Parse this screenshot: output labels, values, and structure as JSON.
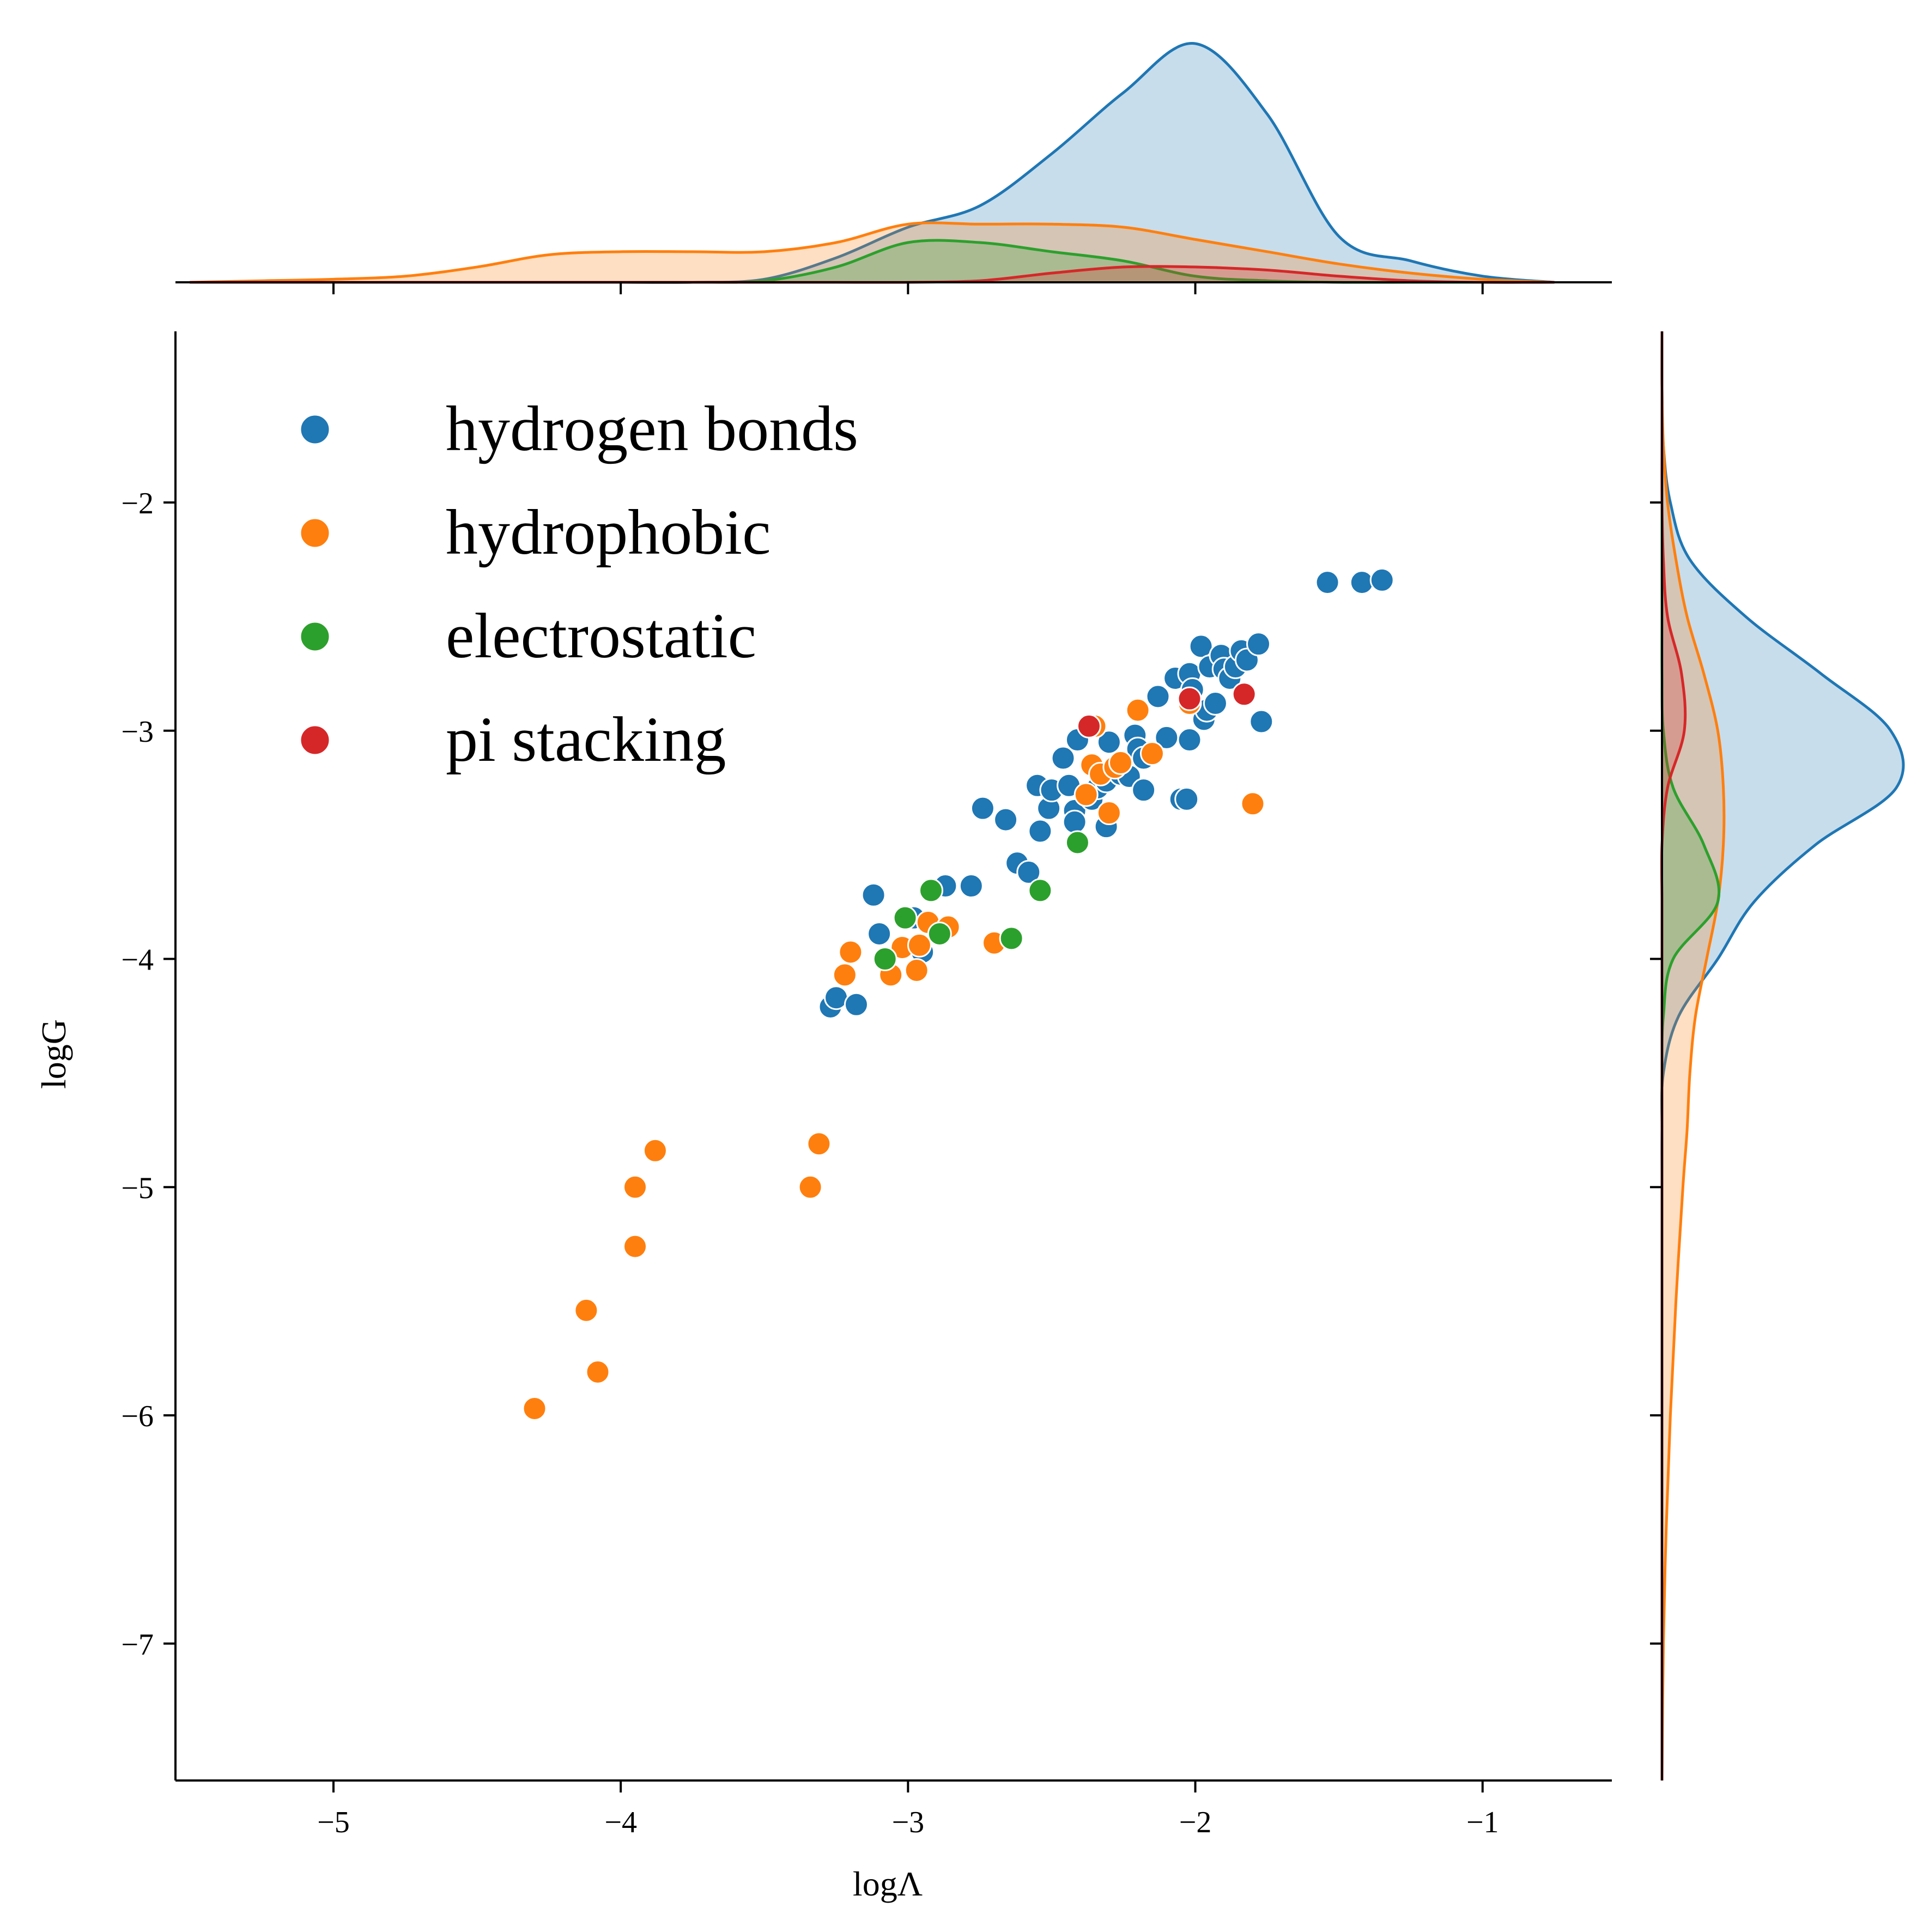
{
  "chart_data": {
    "type": "scatter",
    "variant": "joint scatter with marginal KDE density curves (top and right)",
    "xlabel": "logΛ",
    "ylabel": "logG",
    "xlim": [
      -5.55,
      -0.55
    ],
    "ylim": [
      -7.6,
      -1.25
    ],
    "xticks": [
      -5,
      -4,
      -3,
      -2,
      -1
    ],
    "yticks": [
      -7,
      -6,
      -5,
      -4,
      -3,
      -2
    ],
    "xtick_labels": [
      "−5",
      "−4",
      "−3",
      "−2",
      "−1"
    ],
    "ytick_labels": [
      "−7",
      "−6",
      "−5",
      "−4",
      "−3",
      "−2"
    ],
    "grid": false,
    "legend_placement": "top-left",
    "series": [
      {
        "name": "hydrogen bonds",
        "color": "#1f77b4",
        "points": [
          [
            -3.27,
            -4.21
          ],
          [
            -3.25,
            -4.17
          ],
          [
            -3.18,
            -4.2
          ],
          [
            -3.12,
            -3.72
          ],
          [
            -3.1,
            -3.89
          ],
          [
            -2.98,
            -3.82
          ],
          [
            -2.95,
            -3.97
          ],
          [
            -2.87,
            -3.68
          ],
          [
            -2.78,
            -3.68
          ],
          [
            -2.74,
            -3.34
          ],
          [
            -2.66,
            -3.39
          ],
          [
            -2.62,
            -3.58
          ],
          [
            -2.58,
            -3.62
          ],
          [
            -2.55,
            -3.24
          ],
          [
            -2.54,
            -3.44
          ],
          [
            -2.51,
            -3.34
          ],
          [
            -2.5,
            -3.26
          ],
          [
            -2.46,
            -3.12
          ],
          [
            -2.44,
            -3.24
          ],
          [
            -2.42,
            -3.35
          ],
          [
            -2.42,
            -3.4
          ],
          [
            -2.41,
            -3.04
          ],
          [
            -2.36,
            -3.3
          ],
          [
            -2.34,
            -3.25
          ],
          [
            -2.31,
            -3.22
          ],
          [
            -2.31,
            -3.42
          ],
          [
            -2.3,
            -3.05
          ],
          [
            -2.26,
            -3.19
          ],
          [
            -2.23,
            -3.2
          ],
          [
            -2.21,
            -3.02
          ],
          [
            -2.2,
            -3.08
          ],
          [
            -2.18,
            -3.12
          ],
          [
            -2.18,
            -3.26
          ],
          [
            -2.13,
            -2.85
          ],
          [
            -2.1,
            -3.03
          ],
          [
            -2.07,
            -2.77
          ],
          [
            -2.05,
            -3.3
          ],
          [
            -2.03,
            -3.3
          ],
          [
            -2.02,
            -3.04
          ],
          [
            -2.02,
            -2.75
          ],
          [
            -2.01,
            -2.82
          ],
          [
            -1.98,
            -2.63
          ],
          [
            -1.97,
            -2.95
          ],
          [
            -1.96,
            -2.91
          ],
          [
            -1.95,
            -2.72
          ],
          [
            -1.93,
            -2.88
          ],
          [
            -1.91,
            -2.67
          ],
          [
            -1.9,
            -2.73
          ],
          [
            -1.88,
            -2.77
          ],
          [
            -1.86,
            -2.72
          ],
          [
            -1.84,
            -2.65
          ],
          [
            -1.82,
            -2.69
          ],
          [
            -1.78,
            -2.62
          ],
          [
            -1.77,
            -2.96
          ],
          [
            -1.54,
            -2.35
          ],
          [
            -1.42,
            -2.35
          ],
          [
            -1.35,
            -2.34
          ]
        ]
      },
      {
        "name": "hydrophobic",
        "color": "#ff7f0e",
        "points": [
          [
            -4.3,
            -5.97
          ],
          [
            -4.12,
            -5.54
          ],
          [
            -4.08,
            -5.81
          ],
          [
            -3.95,
            -5.26
          ],
          [
            -3.95,
            -5.0
          ],
          [
            -3.88,
            -4.84
          ],
          [
            -3.34,
            -5.0
          ],
          [
            -3.31,
            -4.81
          ],
          [
            -3.22,
            -4.07
          ],
          [
            -3.2,
            -3.97
          ],
          [
            -3.06,
            -4.07
          ],
          [
            -3.02,
            -3.95
          ],
          [
            -2.97,
            -4.05
          ],
          [
            -2.96,
            -3.94
          ],
          [
            -2.93,
            -3.84
          ],
          [
            -2.86,
            -3.86
          ],
          [
            -2.7,
            -3.93
          ],
          [
            -2.38,
            -3.28
          ],
          [
            -2.36,
            -3.15
          ],
          [
            -2.35,
            -2.98
          ],
          [
            -2.33,
            -3.19
          ],
          [
            -2.3,
            -3.36
          ],
          [
            -2.28,
            -3.16
          ],
          [
            -2.26,
            -3.14
          ],
          [
            -2.2,
            -2.91
          ],
          [
            -2.15,
            -3.1
          ],
          [
            -2.02,
            -2.88
          ],
          [
            -1.8,
            -3.32
          ]
        ]
      },
      {
        "name": "electrostatic",
        "color": "#2ca02c",
        "points": [
          [
            -3.08,
            -4.0
          ],
          [
            -3.01,
            -3.82
          ],
          [
            -2.92,
            -3.7
          ],
          [
            -2.89,
            -3.89
          ],
          [
            -2.64,
            -3.91
          ],
          [
            -2.54,
            -3.7
          ],
          [
            -2.41,
            -3.49
          ]
        ]
      },
      {
        "name": "pi stacking",
        "color": "#d62728",
        "points": [
          [
            -2.37,
            -2.98
          ],
          [
            -2.02,
            -2.86
          ],
          [
            -1.83,
            -2.84
          ]
        ]
      }
    ],
    "marginal_x_density": {
      "grid": [
        -5.5,
        -5.25,
        -5.0,
        -4.75,
        -4.5,
        -4.25,
        -4.0,
        -3.75,
        -3.5,
        -3.25,
        -3.0,
        -2.75,
        -2.5,
        -2.25,
        -2.0,
        -1.75,
        -1.5,
        -1.25,
        -1.0,
        -0.75
      ],
      "hydrogen bonds": [
        0,
        0,
        0,
        0,
        0,
        0,
        0,
        0,
        0.01,
        0.08,
        0.18,
        0.25,
        0.42,
        0.62,
        0.78,
        0.55,
        0.15,
        0.07,
        0.02,
        0
      ],
      "hydrophobic": [
        0,
        0.005,
        0.01,
        0.02,
        0.05,
        0.09,
        0.1,
        0.1,
        0.1,
        0.13,
        0.19,
        0.19,
        0.19,
        0.18,
        0.14,
        0.1,
        0.06,
        0.03,
        0.01,
        0
      ],
      "electrostatic": [
        0,
        0,
        0,
        0,
        0,
        0,
        0,
        0,
        0.005,
        0.05,
        0.13,
        0.13,
        0.1,
        0.07,
        0.02,
        0.005,
        0,
        0,
        0,
        0
      ],
      "pi stacking": [
        0,
        0,
        0,
        0,
        0,
        0,
        0,
        0,
        0,
        0,
        0,
        0.005,
        0.03,
        0.05,
        0.05,
        0.04,
        0.02,
        0.005,
        0,
        0
      ]
    },
    "marginal_y_density": {
      "grid": [
        -7.6,
        -7.0,
        -6.5,
        -6.0,
        -5.5,
        -5.0,
        -4.75,
        -4.5,
        -4.25,
        -4.0,
        -3.75,
        -3.5,
        -3.25,
        -3.0,
        -2.75,
        -2.5,
        -2.25,
        -2.0,
        -1.75,
        -1.5,
        -1.25
      ],
      "hydrogen bonds": [
        0,
        0,
        0,
        0,
        0,
        0,
        0,
        0.005,
        0.06,
        0.2,
        0.33,
        0.55,
        0.84,
        0.82,
        0.57,
        0.3,
        0.1,
        0.03,
        0.005,
        0,
        0
      ],
      "hydrophobic": [
        0,
        0.005,
        0.015,
        0.03,
        0.05,
        0.075,
        0.09,
        0.1,
        0.12,
        0.16,
        0.2,
        0.22,
        0.22,
        0.2,
        0.15,
        0.09,
        0.05,
        0.02,
        0.005,
        0,
        0
      ],
      "electrostatic": [
        0,
        0,
        0,
        0,
        0,
        0,
        0,
        0,
        0.005,
        0.04,
        0.2,
        0.15,
        0.04,
        0.005,
        0,
        0,
        0,
        0,
        0,
        0,
        0
      ],
      "pi stacking": [
        0,
        0,
        0,
        0,
        0,
        0,
        0,
        0,
        0,
        0,
        0,
        0,
        0.02,
        0.08,
        0.07,
        0.02,
        0.005,
        0,
        0,
        0,
        0
      ]
    }
  }
}
